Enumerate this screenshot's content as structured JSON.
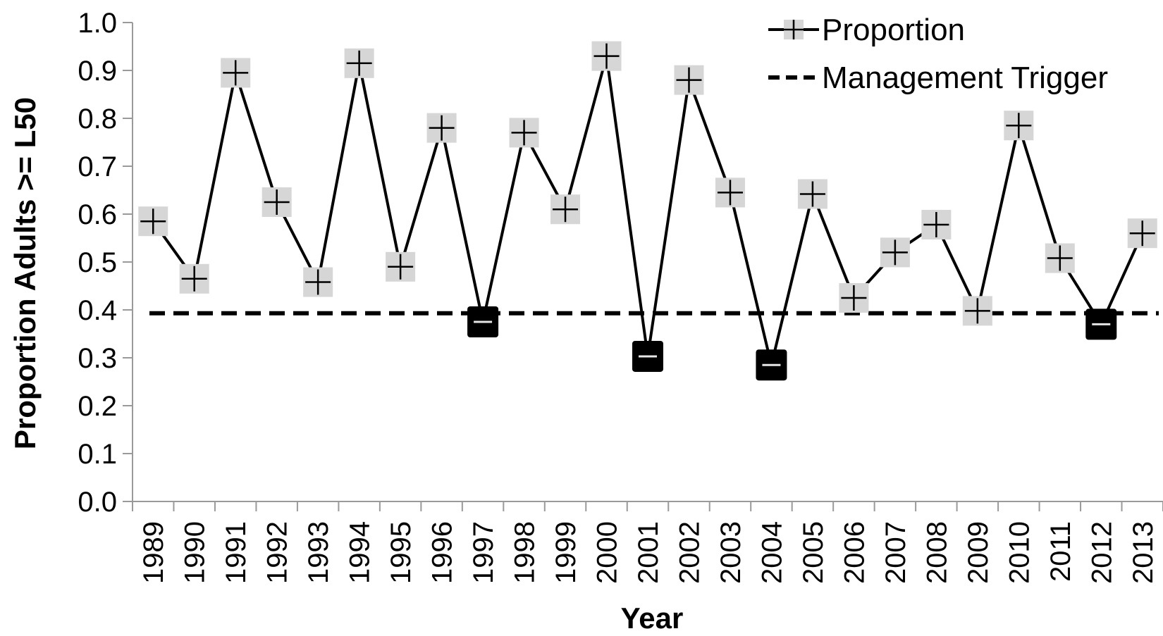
{
  "chart_data": {
    "type": "line",
    "title": "",
    "xlabel": "Year",
    "ylabel": "Proportion Adults >= L50",
    "ylim": [
      0,
      1
    ],
    "yticks": [
      "0.0",
      "0.1",
      "0.2",
      "0.3",
      "0.4",
      "0.5",
      "0.6",
      "0.7",
      "0.8",
      "0.9",
      "1.0"
    ],
    "categories": [
      "1989",
      "1990",
      "1991",
      "1992",
      "1993",
      "1994",
      "1995",
      "1996",
      "1997",
      "1998",
      "1999",
      "2000",
      "2001",
      "2002",
      "2003",
      "2004",
      "2005",
      "2006",
      "2007",
      "2008",
      "2009",
      "2010",
      "2011",
      "2012",
      "2013"
    ],
    "grid": false,
    "legend_position": "top-right",
    "series": [
      {
        "name": "Proportion",
        "style": "solid-line-with-square-markers",
        "values": [
          0.585,
          0.465,
          0.895,
          0.625,
          0.458,
          0.915,
          0.49,
          0.78,
          0.375,
          0.77,
          0.61,
          0.93,
          0.303,
          0.88,
          0.645,
          0.285,
          0.642,
          0.425,
          0.52,
          0.578,
          0.398,
          0.785,
          0.508,
          0.37,
          0.56
        ],
        "below_trigger_years": [
          "1997",
          "2001",
          "2004",
          "2012"
        ]
      },
      {
        "name": "Management Trigger",
        "style": "dashed",
        "value": 0.393
      }
    ],
    "colors": {
      "line": "#000000",
      "marker_fill": "#d6d6d6",
      "marker_below_trigger": "#000000",
      "axis": "#9a9a9a"
    }
  }
}
